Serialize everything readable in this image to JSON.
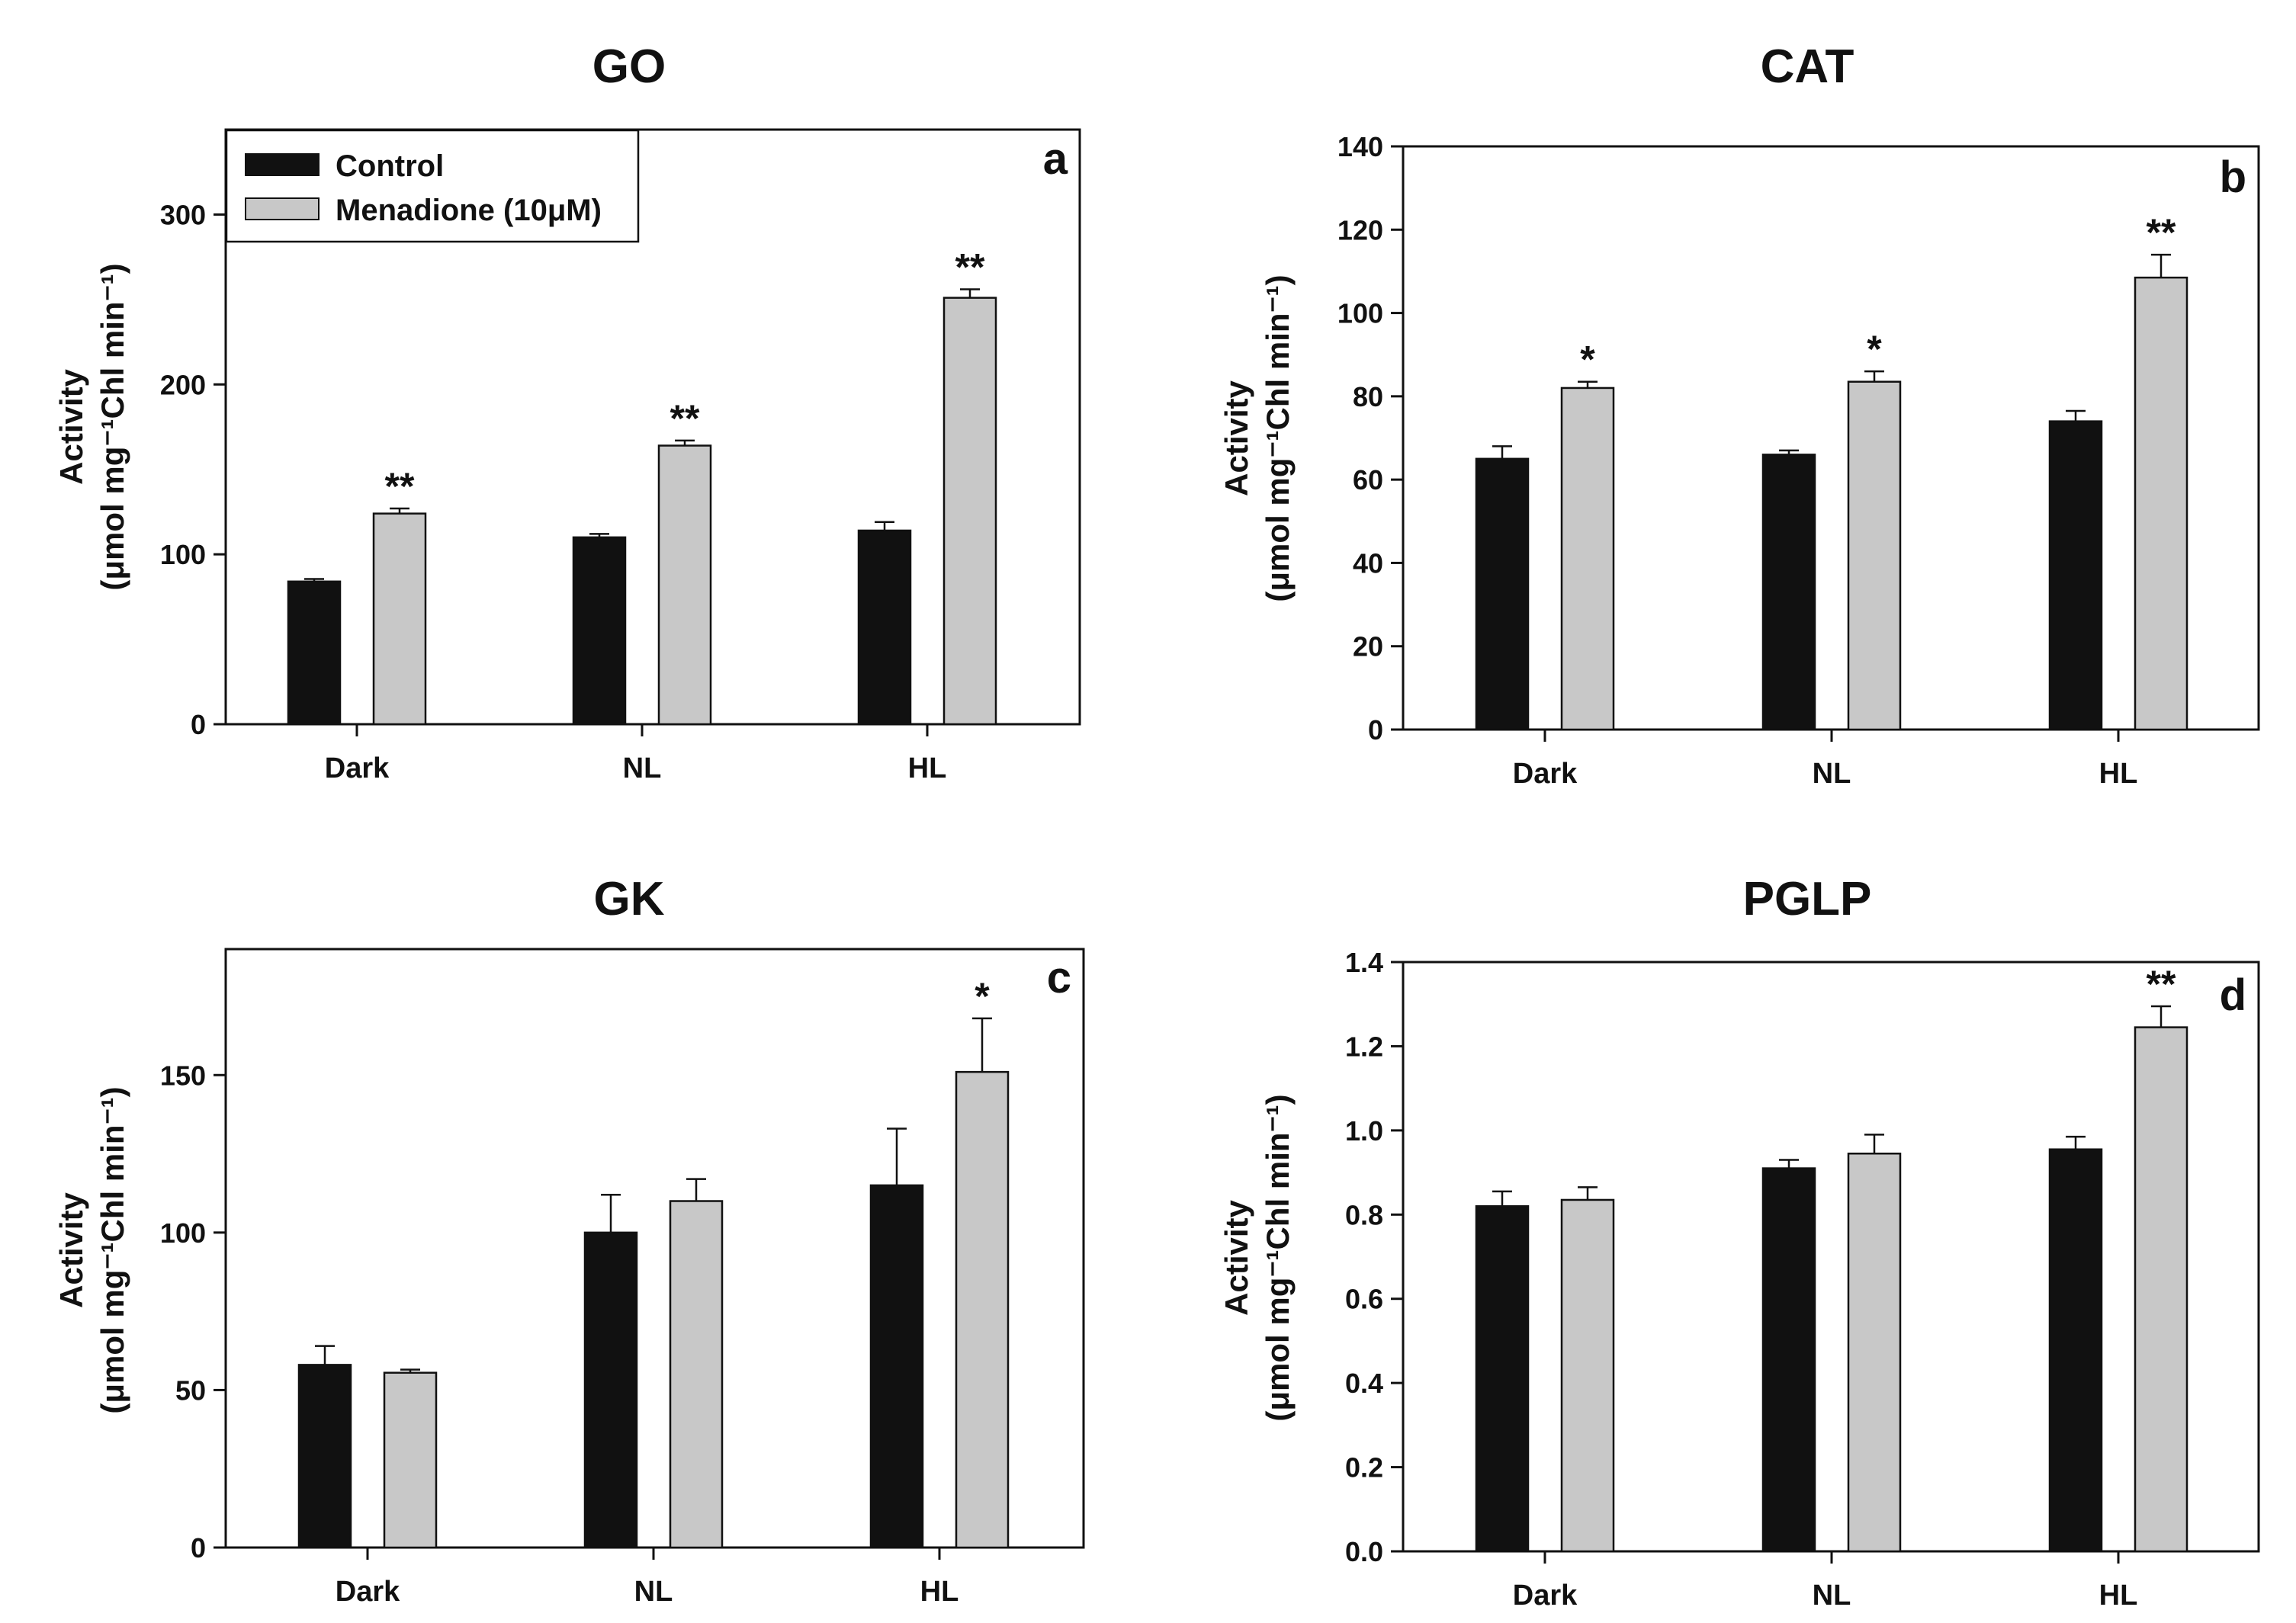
{
  "legend": {
    "items": [
      {
        "label": "Control",
        "color": "#111111"
      },
      {
        "label": "Menadione (10μM)",
        "color": "#c8c8c8"
      }
    ]
  },
  "chart_data": [
    {
      "type": "bar",
      "title": "GO",
      "panel_label": "a",
      "categories": [
        "Dark",
        "NL",
        "HL"
      ],
      "ylabel": "Activity",
      "ylabel_unit": "(μmol mg⁻¹Chl min⁻¹)",
      "ylim": [
        0,
        350
      ],
      "yticks": [
        0,
        100,
        200,
        300
      ],
      "ytick_labels": [
        "0",
        "100",
        "200",
        "300"
      ],
      "series": [
        {
          "name": "Control",
          "values": [
            84,
            110,
            114
          ],
          "errors": [
            1.5,
            2,
            5
          ]
        },
        {
          "name": "Menadione (10μM)",
          "values": [
            124,
            164,
            251
          ],
          "errors": [
            3,
            3,
            5
          ],
          "significance": [
            "**",
            "**",
            "**"
          ]
        }
      ]
    },
    {
      "type": "bar",
      "title": "CAT",
      "panel_label": "b",
      "categories": [
        "Dark",
        "NL",
        "HL"
      ],
      "ylabel": "Activity",
      "ylabel_unit": "(μmol mg⁻¹Chl min⁻¹)",
      "ylim": [
        0,
        140
      ],
      "yticks": [
        0,
        20,
        40,
        60,
        80,
        100,
        120,
        140
      ],
      "ytick_labels": [
        "0",
        "20",
        "40",
        "60",
        "80",
        "100",
        "120",
        "140"
      ],
      "series": [
        {
          "name": "Control",
          "values": [
            65,
            66,
            74
          ],
          "errors": [
            3,
            1,
            2.5
          ]
        },
        {
          "name": "Menadione (10μM)",
          "values": [
            82,
            83.5,
            108.5
          ],
          "errors": [
            1.5,
            2.5,
            5.5
          ],
          "significance": [
            "*",
            "*",
            "**"
          ]
        }
      ]
    },
    {
      "type": "bar",
      "title": "GK",
      "panel_label": "c",
      "categories": [
        "Dark",
        "NL",
        "HL"
      ],
      "ylabel": "Activity",
      "ylabel_unit": "(μmol mg⁻¹Chl min⁻¹)",
      "ylim": [
        0,
        190
      ],
      "yticks": [
        0,
        50,
        100,
        150
      ],
      "ytick_labels": [
        "0",
        "50",
        "100",
        "150"
      ],
      "series": [
        {
          "name": "Control",
          "values": [
            58,
            100,
            115
          ],
          "errors": [
            6,
            12,
            18
          ]
        },
        {
          "name": "Menadione (10μM)",
          "values": [
            55.5,
            110,
            151
          ],
          "errors": [
            1,
            7,
            17
          ],
          "significance": [
            "",
            "",
            "*"
          ]
        }
      ]
    },
    {
      "type": "bar",
      "title": "PGLP",
      "panel_label": "d",
      "categories": [
        "Dark",
        "NL",
        "HL"
      ],
      "ylabel": "Activity",
      "ylabel_unit": "(μmol mg⁻¹Chl min⁻¹)",
      "ylim": [
        0,
        1.4
      ],
      "yticks": [
        0,
        0.2,
        0.4,
        0.6,
        0.8,
        1.0,
        1.2,
        1.4
      ],
      "ytick_labels": [
        "0.0",
        "0.2",
        "0.4",
        "0.6",
        "0.8",
        "1.0",
        "1.2",
        "1.4"
      ],
      "series": [
        {
          "name": "Control",
          "values": [
            0.82,
            0.91,
            0.955
          ],
          "errors": [
            0.035,
            0.02,
            0.03
          ]
        },
        {
          "name": "Menadione (10μM)",
          "values": [
            0.835,
            0.945,
            1.245
          ],
          "errors": [
            0.03,
            0.045,
            0.05
          ],
          "significance": [
            "",
            "",
            "**"
          ]
        }
      ]
    }
  ]
}
